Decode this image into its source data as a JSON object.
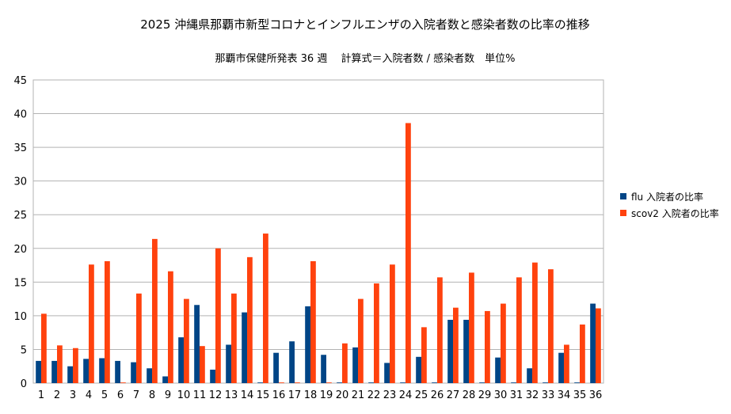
{
  "chart_data": {
    "type": "bar",
    "title": "2025 沖縄県那覇市新型コロナとインフルエンザの入院者数と感染者数の比率の推移",
    "subtitle": "那覇市保健所発表 36 週　 計算式＝入院者数 / 感染者数　単位%",
    "xlabel": "",
    "ylabel": "",
    "ylim": [
      0,
      45
    ],
    "yticks": [
      0,
      5,
      10,
      15,
      20,
      25,
      30,
      35,
      40,
      45
    ],
    "grid": true,
    "legend_position": "right",
    "categories": [
      "1",
      "2",
      "3",
      "4",
      "5",
      "6",
      "7",
      "8",
      "9",
      "10",
      "11",
      "12",
      "13",
      "14",
      "15",
      "16",
      "17",
      "18",
      "19",
      "20",
      "21",
      "22",
      "23",
      "24",
      "25",
      "26",
      "27",
      "28",
      "29",
      "30",
      "31",
      "32",
      "33",
      "34",
      "35",
      "36"
    ],
    "series": [
      {
        "name": "flu 入院者の比率",
        "color": "#004586",
        "values": [
          3.3,
          3.3,
          2.5,
          3.6,
          3.7,
          3.3,
          3.1,
          2.2,
          1.0,
          6.8,
          11.6,
          2.0,
          5.7,
          10.5,
          0.1,
          4.5,
          6.2,
          11.4,
          4.2,
          0.1,
          5.3,
          0.1,
          3.0,
          0.1,
          3.9,
          0.1,
          9.4,
          9.4,
          0.1,
          3.8,
          0.1,
          2.2,
          0.1,
          4.5,
          0.1,
          11.8
        ]
      },
      {
        "name": "scov2 入院者の比率",
        "color": "#ff420e",
        "values": [
          10.3,
          5.6,
          5.2,
          17.6,
          18.1,
          0.1,
          13.3,
          21.4,
          16.6,
          12.5,
          5.5,
          20.0,
          13.3,
          18.7,
          22.2,
          0.1,
          0.1,
          18.1,
          0.1,
          5.9,
          12.5,
          14.8,
          17.6,
          38.6,
          8.3,
          15.7,
          11.2,
          16.4,
          10.7,
          11.8,
          15.7,
          17.9,
          16.9,
          5.7,
          8.7,
          11.1
        ]
      }
    ]
  }
}
